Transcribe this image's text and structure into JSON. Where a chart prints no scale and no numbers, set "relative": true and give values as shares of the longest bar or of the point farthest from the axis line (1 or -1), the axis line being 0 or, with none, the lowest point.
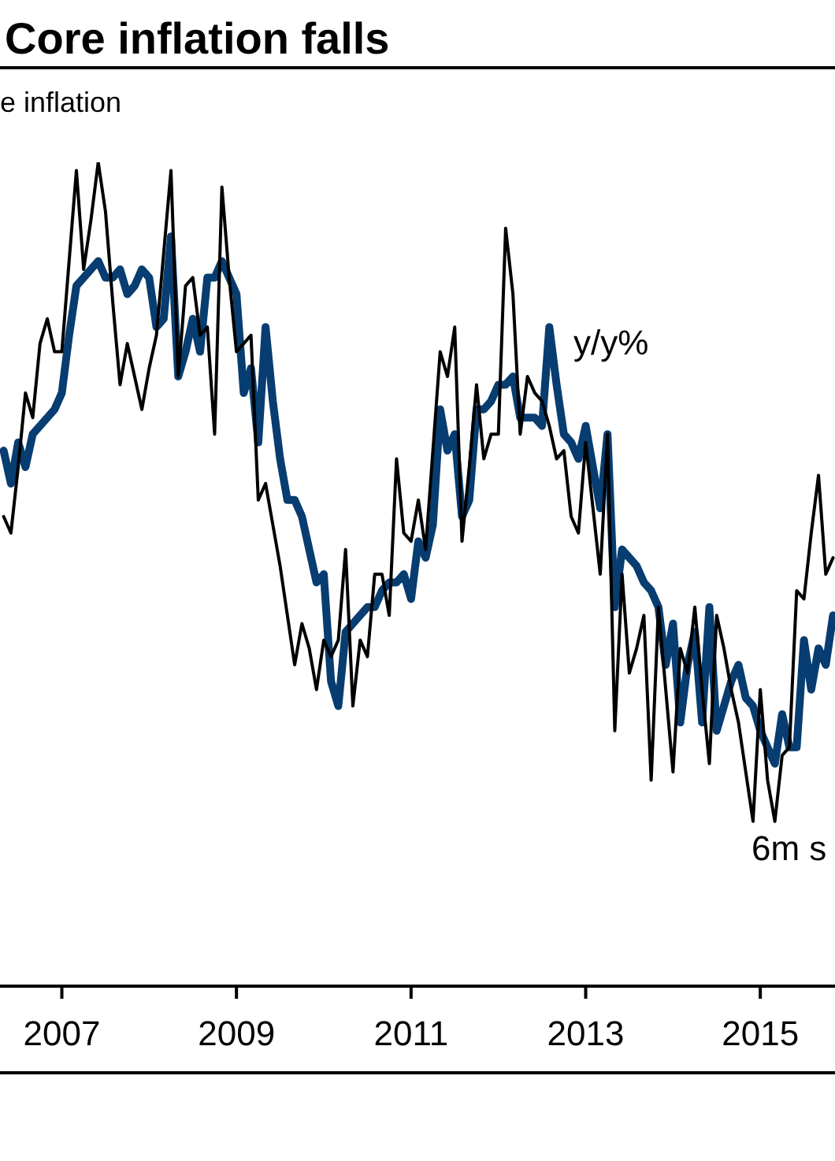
{
  "chart_data": {
    "type": "line",
    "title": "Core inflation falls",
    "subtitle": "e inflation",
    "relative": true,
    "xlim": [
      "2006-04-16",
      "2015-11-09"
    ],
    "xticks": [
      "2007",
      "2009",
      "2011",
      "2013",
      "2015"
    ],
    "tick_labels": "x",
    "marker": "none",
    "line_style": "solid",
    "x": [
      "2006-05",
      "2006-06",
      "2006-07",
      "2006-08",
      "2006-09",
      "2006-10",
      "2006-11",
      "2006-12",
      "2007-01",
      "2007-02",
      "2007-03",
      "2007-04",
      "2007-05",
      "2007-06",
      "2007-07",
      "2007-08",
      "2007-09",
      "2007-10",
      "2007-11",
      "2007-12",
      "2008-01",
      "2008-02",
      "2008-03",
      "2008-04",
      "2008-05",
      "2008-06",
      "2008-07",
      "2008-08",
      "2008-09",
      "2008-10",
      "2008-11",
      "2008-12",
      "2009-01",
      "2009-02",
      "2009-03",
      "2009-04",
      "2009-05",
      "2009-06",
      "2009-07",
      "2009-08",
      "2009-09",
      "2009-10",
      "2009-11",
      "2009-12",
      "2010-01",
      "2010-02",
      "2010-03",
      "2010-04",
      "2010-05",
      "2010-06",
      "2010-07",
      "2010-08",
      "2010-09",
      "2010-10",
      "2010-11",
      "2010-12",
      "2011-01",
      "2011-02",
      "2011-03",
      "2011-04",
      "2011-05",
      "2011-06",
      "2011-07",
      "2011-08",
      "2011-09",
      "2011-10",
      "2011-11",
      "2011-12",
      "2012-01",
      "2012-02",
      "2012-03",
      "2012-04",
      "2012-05",
      "2012-06",
      "2012-07",
      "2012-08",
      "2012-09",
      "2012-10",
      "2012-11",
      "2012-12",
      "2013-01",
      "2013-02",
      "2013-03",
      "2013-04",
      "2013-05",
      "2013-06",
      "2013-07",
      "2013-08",
      "2013-09",
      "2013-10",
      "2013-11",
      "2013-12",
      "2014-01",
      "2014-02",
      "2014-03",
      "2014-04",
      "2014-05",
      "2014-06",
      "2014-07",
      "2014-08",
      "2014-09",
      "2014-10",
      "2014-11",
      "2014-12",
      "2015-01",
      "2015-02",
      "2015-03",
      "2015-04",
      "2015-05",
      "2015-06",
      "2015-07",
      "2015-08",
      "2015-09",
      "2015-10",
      "2015-11"
    ],
    "series": [
      {
        "name": "y/y%",
        "color": "#073d70",
        "values": [
          0.65,
          0.61,
          0.66,
          0.63,
          0.67,
          0.68,
          0.69,
          0.7,
          0.72,
          0.79,
          0.85,
          0.86,
          0.87,
          0.88,
          0.86,
          0.86,
          0.87,
          0.84,
          0.85,
          0.87,
          0.86,
          0.8,
          0.81,
          0.91,
          0.74,
          0.77,
          0.81,
          0.77,
          0.86,
          0.86,
          0.88,
          0.86,
          0.84,
          0.72,
          0.75,
          0.66,
          0.8,
          0.71,
          0.64,
          0.59,
          0.59,
          0.57,
          0.53,
          0.49,
          0.5,
          0.37,
          0.34,
          0.43,
          0.44,
          0.45,
          0.46,
          0.46,
          0.48,
          0.49,
          0.49,
          0.5,
          0.47,
          0.54,
          0.52,
          0.56,
          0.7,
          0.65,
          0.67,
          0.57,
          0.59,
          0.7,
          0.7,
          0.71,
          0.73,
          0.73,
          0.74,
          0.69,
          0.69,
          0.69,
          0.68,
          0.8,
          0.73,
          0.67,
          0.66,
          0.64,
          0.68,
          0.63,
          0.58,
          0.67,
          0.46,
          0.53,
          0.52,
          0.51,
          0.49,
          0.48,
          0.46,
          0.39,
          0.44,
          0.32,
          0.39,
          0.43,
          0.32,
          0.46,
          0.31,
          0.34,
          0.37,
          0.39,
          0.35,
          0.34,
          0.31,
          0.29,
          0.27,
          0.33,
          0.29,
          0.29,
          0.42,
          0.36,
          0.41,
          0.39,
          0.45
        ]
      },
      {
        "name": "6m s",
        "color": "#000000",
        "values": [
          0.57,
          0.55,
          0.63,
          0.72,
          0.69,
          0.78,
          0.81,
          0.77,
          0.77,
          0.88,
          0.99,
          0.87,
          0.93,
          1.0,
          0.94,
          0.83,
          0.73,
          0.78,
          0.74,
          0.7,
          0.75,
          0.79,
          0.89,
          0.99,
          0.74,
          0.85,
          0.86,
          0.79,
          0.8,
          0.67,
          0.97,
          0.86,
          0.77,
          0.78,
          0.79,
          0.59,
          0.61,
          0.56,
          0.51,
          0.45,
          0.39,
          0.44,
          0.41,
          0.36,
          0.42,
          0.4,
          0.42,
          0.53,
          0.34,
          0.42,
          0.4,
          0.5,
          0.5,
          0.45,
          0.64,
          0.55,
          0.54,
          0.59,
          0.53,
          0.65,
          0.77,
          0.74,
          0.8,
          0.54,
          0.63,
          0.73,
          0.64,
          0.67,
          0.67,
          0.92,
          0.84,
          0.67,
          0.74,
          0.72,
          0.71,
          0.68,
          0.64,
          0.65,
          0.57,
          0.55,
          0.66,
          0.58,
          0.5,
          0.67,
          0.31,
          0.5,
          0.38,
          0.41,
          0.45,
          0.25,
          0.46,
          0.36,
          0.26,
          0.41,
          0.38,
          0.46,
          0.36,
          0.27,
          0.45,
          0.41,
          0.36,
          0.32,
          0.26,
          0.2,
          0.36,
          0.25,
          0.2,
          0.28,
          0.29,
          0.48,
          0.47,
          0.55,
          0.62,
          0.5,
          0.52
        ]
      }
    ]
  }
}
